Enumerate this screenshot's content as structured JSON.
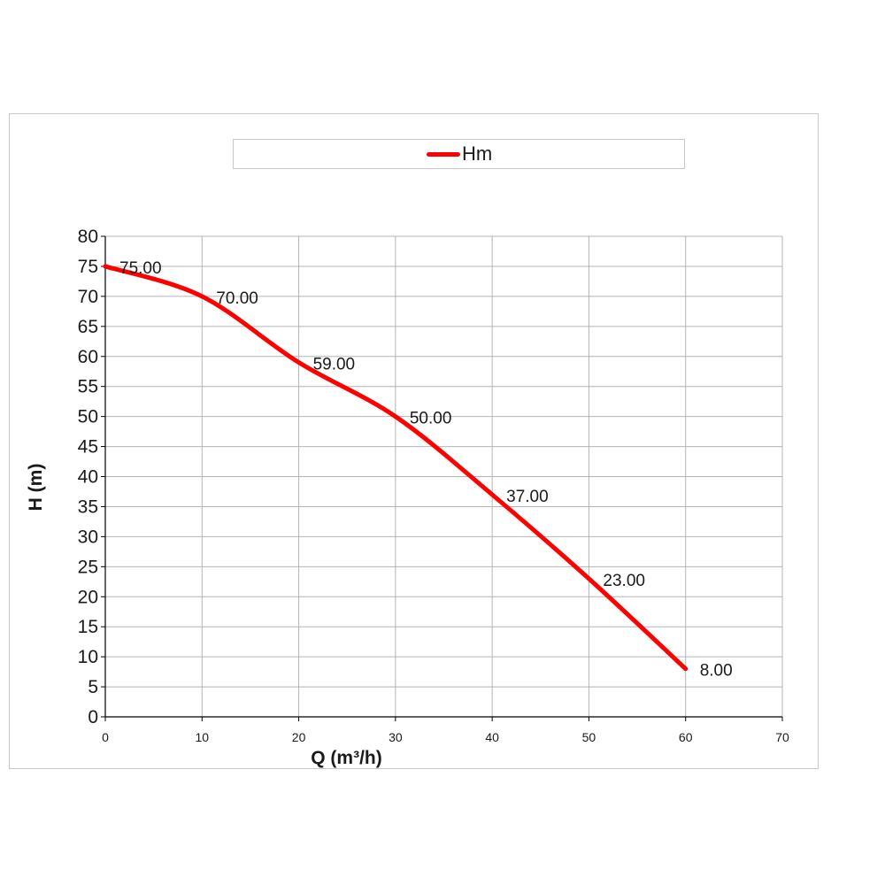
{
  "legend": {
    "label": "Hm"
  },
  "colors": {
    "series": "#ff0000",
    "grid": "#b4b4b4",
    "axis": "#000000"
  },
  "chart_data": {
    "type": "line",
    "title": "",
    "xlabel": "Q (m³/h)",
    "ylabel": "H (m)",
    "xlim": [
      0,
      70
    ],
    "ylim": [
      0,
      80
    ],
    "x_ticks": [
      0,
      10,
      20,
      30,
      40,
      50,
      60,
      70
    ],
    "y_ticks": [
      0,
      5,
      10,
      15,
      20,
      25,
      30,
      35,
      40,
      45,
      50,
      55,
      60,
      65,
      70,
      75,
      80
    ],
    "grid": true,
    "legend_position": "top",
    "series": [
      {
        "name": "Hm",
        "x": [
          0,
          10,
          20,
          30,
          40,
          50,
          60
        ],
        "y": [
          75,
          70,
          59,
          50,
          37,
          23,
          8
        ],
        "labels": [
          "75.00",
          "70.00",
          "59.00",
          "50.00",
          "37.00",
          "23.00",
          "8.00"
        ]
      }
    ]
  }
}
